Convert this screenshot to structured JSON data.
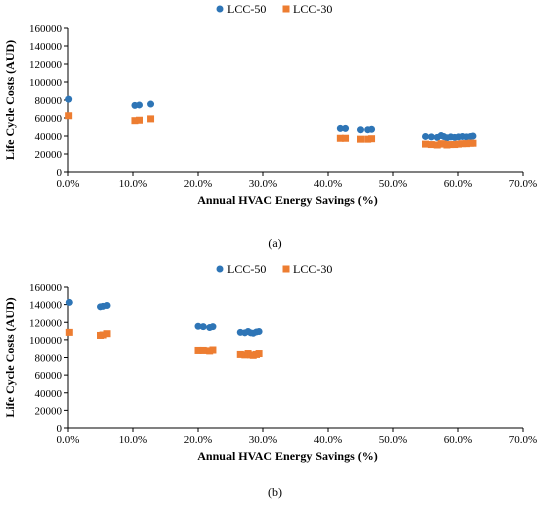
{
  "chart_data": [
    {
      "type": "scatter",
      "panel_label": "(a)",
      "xlabel": "Annual HVAC Energy Savings (%)",
      "ylabel": "Life Cycle Costs (AUD)",
      "xlim": [
        0,
        70
      ],
      "ylim": [
        0,
        160000
      ],
      "x_ticks": [
        0,
        10,
        20,
        30,
        40,
        50,
        60,
        70
      ],
      "x_tick_labels": [
        "0.0%",
        "10.0%",
        "20.0%",
        "30.0%",
        "40.0%",
        "50.0%",
        "60.0%",
        "70.0%"
      ],
      "y_ticks": [
        0,
        20000,
        40000,
        60000,
        80000,
        100000,
        120000,
        140000,
        160000
      ],
      "y_tick_labels": [
        "0",
        "20000",
        "40000",
        "60000",
        "80000",
        "100000",
        "120000",
        "140000",
        "160000"
      ],
      "legend_position": "top-center",
      "grid": false,
      "series": [
        {
          "name": "LCC-50",
          "marker": "circle",
          "color": "#2E75B6",
          "x": [
            0.1,
            10.3,
            11.0,
            12.7,
            41.9,
            42.7,
            45.0,
            46.1,
            46.7,
            55.0,
            55.9,
            56.8,
            57.4,
            57.8,
            58.3,
            58.9,
            59.5,
            60.1,
            60.7,
            61.3,
            61.9,
            62.3
          ],
          "y": [
            81000,
            74000,
            74500,
            75500,
            48500,
            48500,
            47000,
            47000,
            47500,
            39500,
            39000,
            38500,
            40500,
            39500,
            38000,
            39000,
            38500,
            39000,
            39500,
            39000,
            39500,
            40000
          ]
        },
        {
          "name": "LCC-30",
          "marker": "square",
          "color": "#ED7D31",
          "x": [
            0.1,
            10.3,
            11.0,
            12.7,
            41.9,
            42.7,
            45.0,
            46.1,
            46.7,
            55.0,
            55.9,
            56.8,
            57.4,
            57.8,
            58.3,
            58.9,
            59.5,
            60.1,
            60.7,
            61.3,
            61.9,
            62.3
          ],
          "y": [
            62500,
            57000,
            57500,
            59000,
            37500,
            37500,
            36500,
            36500,
            37000,
            31000,
            30500,
            30000,
            31500,
            31000,
            30000,
            30500,
            30500,
            31000,
            31500,
            31500,
            32000,
            32000
          ]
        }
      ]
    },
    {
      "type": "scatter",
      "panel_label": "(b)",
      "xlabel": "Annual HVAC Energy Savings (%)",
      "ylabel": "Life Cycle Costs (AUD)",
      "xlim": [
        0,
        70
      ],
      "ylim": [
        0,
        160000
      ],
      "x_ticks": [
        0,
        10,
        20,
        30,
        40,
        50,
        60,
        70
      ],
      "x_tick_labels": [
        "0.0%",
        "10.0%",
        "20.0%",
        "30.0%",
        "40.0%",
        "50.0%",
        "60.0%",
        "70.0%"
      ],
      "y_ticks": [
        0,
        20000,
        40000,
        60000,
        80000,
        100000,
        120000,
        140000,
        160000
      ],
      "y_tick_labels": [
        "0",
        "20000",
        "40000",
        "60000",
        "80000",
        "100000",
        "120000",
        "140000",
        "160000"
      ],
      "legend_position": "top-center",
      "grid": false,
      "series": [
        {
          "name": "LCC-50",
          "marker": "circle",
          "color": "#2E75B6",
          "x": [
            0.2,
            5.0,
            5.4,
            6.0,
            20.0,
            20.8,
            21.8,
            22.3,
            26.5,
            27.2,
            27.7,
            28.1,
            28.5,
            29.0,
            29.4
          ],
          "y": [
            142500,
            137500,
            138000,
            139000,
            115500,
            115000,
            114000,
            115000,
            108500,
            108000,
            109500,
            108000,
            107500,
            109000,
            109500
          ]
        },
        {
          "name": "LCC-30",
          "marker": "square",
          "color": "#ED7D31",
          "x": [
            0.2,
            5.0,
            5.4,
            6.0,
            20.0,
            20.8,
            21.8,
            22.3,
            26.5,
            27.2,
            27.7,
            28.1,
            28.5,
            29.0,
            29.4
          ],
          "y": [
            108500,
            105000,
            105500,
            107000,
            88000,
            88000,
            87500,
            88500,
            83500,
            83000,
            84500,
            83000,
            82500,
            83500,
            84500
          ]
        }
      ]
    }
  ]
}
